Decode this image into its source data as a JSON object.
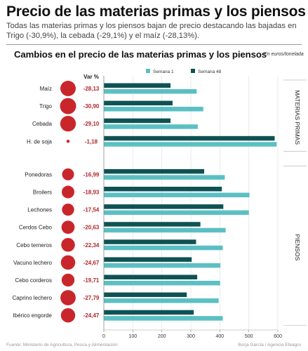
{
  "header": {
    "title": "Precio de las materias primas y los piensos",
    "subtitle": "Todas las materias primas y los piensos bajan de precio destacando las bajadas en Trigo (-30,9%), la cebada (-29,1%) y el maíz (-28,13%)."
  },
  "footer": {
    "source": "Fuente: Ministerio de Agricultura, Pesca y Alimentación",
    "credit": "Borja García / Agencia Efeagro"
  },
  "colors": {
    "semana1": "#5bbfc3",
    "semana48": "#0f5253",
    "bubble": "#c9262c",
    "varText": "#b3262b"
  },
  "chart_data": {
    "type": "bar",
    "orientation": "horizontal",
    "title": "Cambios en el precio de las materias primas y los piensos",
    "unit_label": "En euros/tonelada",
    "var_header": "Var %",
    "legend": [
      "Semana 1",
      "Semana 48"
    ],
    "legend_position": "top",
    "xlim": [
      0,
      600
    ],
    "xticks": [
      "0",
      "100",
      "200",
      "300",
      "400",
      "500",
      "600"
    ],
    "groups": [
      {
        "label": "MATERIAS PRIMAS",
        "items": [
          {
            "category": "Maíz",
            "var": "-28,13",
            "var_value": -28.13,
            "semana1": 320,
            "semana48": 230
          },
          {
            "category": "Trigo",
            "var": "-30,90",
            "var_value": -30.9,
            "semana1": 343,
            "semana48": 237
          },
          {
            "category": "Cebada",
            "var": "-29,10",
            "var_value": -29.1,
            "semana1": 324,
            "semana48": 230
          },
          {
            "category": "H. de soja",
            "var": "-1,18",
            "var_value": -1.18,
            "semana1": 596,
            "semana48": 589
          }
        ]
      },
      {
        "label": "PIENSOS",
        "items": [
          {
            "category": "Ponedoras",
            "var": "-16,99",
            "var_value": -16.99,
            "semana1": 417,
            "semana48": 346
          },
          {
            "category": "Broilers",
            "var": "-18,93",
            "var_value": -18.93,
            "semana1": 502,
            "semana48": 407
          },
          {
            "category": "Lechones",
            "var": "-17,54",
            "var_value": -17.54,
            "semana1": 500,
            "semana48": 412
          },
          {
            "category": "Cerdos Cebo",
            "var": "-20,63",
            "var_value": -20.63,
            "semana1": 420,
            "semana48": 333
          },
          {
            "category": "Cebo terneros",
            "var": "-22,34",
            "var_value": -22.34,
            "semana1": 410,
            "semana48": 318
          },
          {
            "category": "Vacuno lechero",
            "var": "-24,67",
            "var_value": -24.67,
            "semana1": 402,
            "semana48": 303
          },
          {
            "category": "Cebo corderos",
            "var": "-19,71",
            "var_value": -19.71,
            "semana1": 401,
            "semana48": 322
          },
          {
            "category": "Caprino lechero",
            "var": "-27,79",
            "var_value": -27.79,
            "semana1": 396,
            "semana48": 286
          },
          {
            "category": "Ibérico engorde",
            "var": "-24,47",
            "var_value": -24.47,
            "semana1": 410,
            "semana48": 310
          }
        ]
      }
    ]
  }
}
